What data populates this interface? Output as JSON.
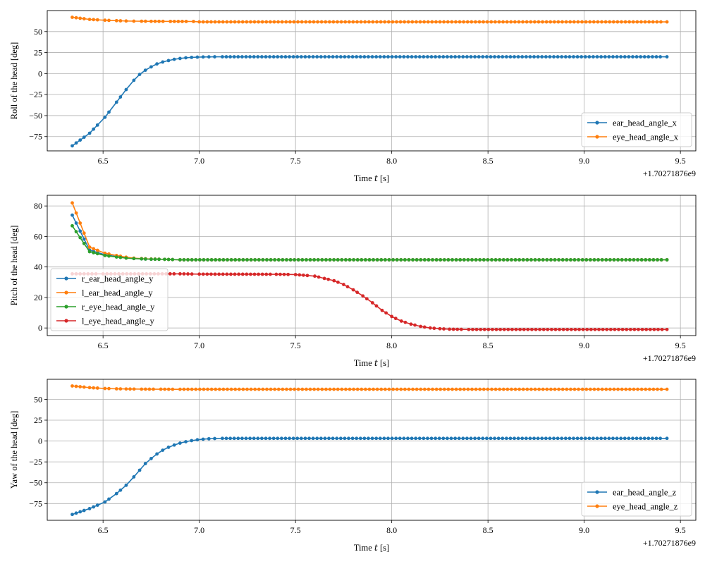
{
  "chart_data": [
    {
      "type": "line",
      "xlabel": "Time 𝑡 [s]",
      "ylabel": "Roll of the head [deg]",
      "x_offset_label": "+1.70271876e9",
      "xlim": [
        6.21,
        9.58
      ],
      "ylim": [
        -92,
        75
      ],
      "xticks": [
        6.5,
        7.0,
        7.5,
        8.0,
        8.5,
        9.0,
        9.5
      ],
      "xtick_labels": [
        "6.5",
        "7.0",
        "7.5",
        "8.0",
        "8.5",
        "9.0",
        "9.5"
      ],
      "yticks": [
        -75,
        -50,
        -25,
        0,
        25,
        50
      ],
      "ytick_labels": [
        "−75",
        "−50",
        "−25",
        "0",
        "25",
        "50"
      ],
      "grid": true,
      "legend_position": "lower-right",
      "series": [
        {
          "name": "ear_head_angle_x",
          "color": "#1f77b4",
          "points": [
            [
              6.34,
              -86.0
            ],
            [
              6.43,
              -71.0
            ],
            [
              6.51,
              -52.0
            ],
            [
              6.57,
              -34.0
            ],
            [
              6.62,
              -19.0
            ],
            [
              6.66,
              -8.0
            ],
            [
              6.69,
              -1.0
            ],
            [
              6.72,
              4.0
            ],
            [
              6.75,
              8.0
            ],
            [
              6.78,
              11.5
            ],
            [
              6.81,
              13.8
            ],
            [
              6.84,
              15.5
            ],
            [
              6.87,
              17.0
            ],
            [
              6.9,
              18.0
            ],
            [
              6.93,
              18.8
            ],
            [
              6.96,
              19.3
            ],
            [
              6.99,
              19.6
            ],
            [
              7.02,
              19.8
            ],
            [
              7.05,
              19.9
            ],
            [
              7.08,
              20.0
            ],
            [
              7.12,
              20.0
            ],
            [
              9.43,
              20.0
            ]
          ]
        },
        {
          "name": "eye_head_angle_x",
          "color": "#ff7f0e",
          "points": [
            [
              6.34,
              67.0
            ],
            [
              6.43,
              64.5
            ],
            [
              6.51,
              63.5
            ],
            [
              6.57,
              63.0
            ],
            [
              6.62,
              62.6
            ],
            [
              6.66,
              62.4
            ],
            [
              6.7,
              62.3
            ],
            [
              6.75,
              62.2
            ],
            [
              6.85,
              62.1
            ],
            [
              6.97,
              62.0
            ],
            [
              7.0,
              61.5
            ],
            [
              9.43,
              61.5
            ]
          ]
        }
      ]
    },
    {
      "type": "line",
      "xlabel": "Time 𝑡 [s]",
      "ylabel": "Pitch of the head [deg]",
      "x_offset_label": "+1.70271876e9",
      "xlim": [
        6.21,
        9.58
      ],
      "ylim": [
        -5,
        87
      ],
      "xticks": [
        6.5,
        7.0,
        7.5,
        8.0,
        8.5,
        9.0,
        9.5
      ],
      "xtick_labels": [
        "6.5",
        "7.0",
        "7.5",
        "8.0",
        "8.5",
        "9.0",
        "9.5"
      ],
      "yticks": [
        0,
        20,
        40,
        60,
        80
      ],
      "ytick_labels": [
        "0",
        "20",
        "40",
        "60",
        "80"
      ],
      "grid": true,
      "legend_position": "lower-left",
      "series": [
        {
          "name": "r_ear_head_angle_y",
          "color": "#1f77b4",
          "points": [
            [
              6.34,
              74.0
            ],
            [
              6.43,
              51.0
            ],
            [
              6.51,
              48.0
            ],
            [
              6.57,
              46.8
            ],
            [
              6.62,
              46.0
            ],
            [
              6.66,
              45.6
            ],
            [
              6.7,
              45.3
            ],
            [
              6.75,
              45.1
            ],
            [
              6.82,
              45.0
            ],
            [
              6.9,
              44.7
            ],
            [
              9.43,
              44.7
            ]
          ]
        },
        {
          "name": "l_ear_head_angle_y",
          "color": "#ff7f0e",
          "points": [
            [
              6.34,
              82.0
            ],
            [
              6.43,
              53.0
            ],
            [
              6.51,
              49.0
            ],
            [
              6.57,
              47.5
            ],
            [
              6.62,
              46.4
            ],
            [
              6.66,
              45.8
            ],
            [
              6.7,
              45.5
            ],
            [
              6.75,
              45.2
            ],
            [
              6.82,
              45.0
            ],
            [
              6.9,
              44.7
            ],
            [
              9.43,
              44.7
            ]
          ]
        },
        {
          "name": "r_eye_head_angle_y",
          "color": "#2ca02c",
          "points": [
            [
              6.34,
              67.0
            ],
            [
              6.43,
              50.0
            ],
            [
              6.51,
              47.5
            ],
            [
              6.57,
              46.5
            ],
            [
              6.62,
              45.8
            ],
            [
              6.66,
              45.5
            ],
            [
              6.7,
              45.3
            ],
            [
              6.75,
              45.1
            ],
            [
              6.82,
              45.0
            ],
            [
              6.9,
              44.7
            ],
            [
              9.43,
              44.7
            ]
          ]
        },
        {
          "name": "l_eye_head_angle_y",
          "color": "#d62728",
          "points": [
            [
              6.34,
              35.5
            ],
            [
              6.5,
              35.5
            ],
            [
              6.9,
              35.5
            ],
            [
              7.0,
              35.3
            ],
            [
              7.4,
              35.2
            ],
            [
              7.5,
              35.0
            ],
            [
              7.6,
              34.0
            ],
            [
              7.65,
              32.5
            ],
            [
              7.7,
              31.0
            ],
            [
              7.75,
              28.5
            ],
            [
              7.8,
              25.0
            ],
            [
              7.85,
              21.0
            ],
            [
              7.9,
              16.5
            ],
            [
              7.95,
              11.5
            ],
            [
              8.0,
              7.5
            ],
            [
              8.05,
              4.5
            ],
            [
              8.1,
              2.5
            ],
            [
              8.15,
              1.0
            ],
            [
              8.2,
              0.0
            ],
            [
              8.25,
              -0.5
            ],
            [
              8.3,
              -0.8
            ],
            [
              8.4,
              -1.0
            ],
            [
              9.43,
              -1.0
            ]
          ]
        }
      ]
    },
    {
      "type": "line",
      "xlabel": "Time 𝑡 [s]",
      "ylabel": "Yaw of the head [deg]",
      "x_offset_label": "+1.70271876e9",
      "xlim": [
        6.21,
        9.58
      ],
      "ylim": [
        -95,
        74
      ],
      "xticks": [
        6.5,
        7.0,
        7.5,
        8.0,
        8.5,
        9.0,
        9.5
      ],
      "xtick_labels": [
        "6.5",
        "7.0",
        "7.5",
        "8.0",
        "8.5",
        "9.0",
        "9.5"
      ],
      "yticks": [
        -75,
        -50,
        -25,
        0,
        25,
        50
      ],
      "ytick_labels": [
        "−75",
        "−50",
        "−25",
        "0",
        "25",
        "50"
      ],
      "grid": true,
      "legend_position": "lower-right",
      "series": [
        {
          "name": "ear_head_angle_z",
          "color": "#1f77b4",
          "points": [
            [
              6.34,
              -88.0
            ],
            [
              6.43,
              -81.0
            ],
            [
              6.51,
              -73.0
            ],
            [
              6.57,
              -63.0
            ],
            [
              6.62,
              -53.0
            ],
            [
              6.66,
              -43.0
            ],
            [
              6.69,
              -35.0
            ],
            [
              6.72,
              -27.0
            ],
            [
              6.75,
              -21.0
            ],
            [
              6.78,
              -15.5
            ],
            [
              6.81,
              -11.0
            ],
            [
              6.84,
              -7.5
            ],
            [
              6.87,
              -4.8
            ],
            [
              6.9,
              -2.5
            ],
            [
              6.93,
              -0.8
            ],
            [
              6.96,
              0.5
            ],
            [
              6.99,
              1.5
            ],
            [
              7.02,
              2.2
            ],
            [
              7.05,
              2.7
            ],
            [
              7.08,
              3.0
            ],
            [
              7.12,
              3.2
            ],
            [
              9.43,
              3.2
            ]
          ]
        },
        {
          "name": "eye_head_angle_z",
          "color": "#ff7f0e",
          "points": [
            [
              6.34,
              66.0
            ],
            [
              6.43,
              64.0
            ],
            [
              6.51,
              63.0
            ],
            [
              6.57,
              62.6
            ],
            [
              6.62,
              62.4
            ],
            [
              6.7,
              62.2
            ],
            [
              6.8,
              62.1
            ],
            [
              6.9,
              62.0
            ],
            [
              9.43,
              62.0
            ]
          ]
        }
      ]
    }
  ]
}
